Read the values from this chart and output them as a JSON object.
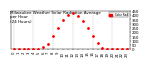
{
  "title": "Milwaukee Weather Solar Radiation Average\nper Hour\n(24 Hours)",
  "hours": [
    0,
    1,
    2,
    3,
    4,
    5,
    6,
    7,
    8,
    9,
    10,
    11,
    12,
    13,
    14,
    15,
    16,
    17,
    18,
    19,
    20,
    21,
    22,
    23
  ],
  "solar": [
    0,
    0,
    0,
    0,
    0,
    2,
    20,
    65,
    150,
    250,
    340,
    400,
    420,
    390,
    330,
    250,
    155,
    70,
    18,
    2,
    0,
    0,
    0,
    0
  ],
  "dot_color": "#ff0000",
  "bg_color": "#ffffff",
  "grid_color": "#999999",
  "ylim": [
    0,
    450
  ],
  "xlim": [
    -0.5,
    23.5
  ],
  "legend_color": "#ff0000",
  "legend_label": "Solar Rad",
  "tick_fontsize": 2.8,
  "title_fontsize": 3.0,
  "yticks": [
    0,
    50,
    100,
    150,
    200,
    250,
    300,
    350,
    400,
    450
  ],
  "ytick_labels": [
    "0",
    "50",
    "100",
    "150",
    "200",
    "250",
    "300",
    "350",
    "400",
    "450"
  ]
}
